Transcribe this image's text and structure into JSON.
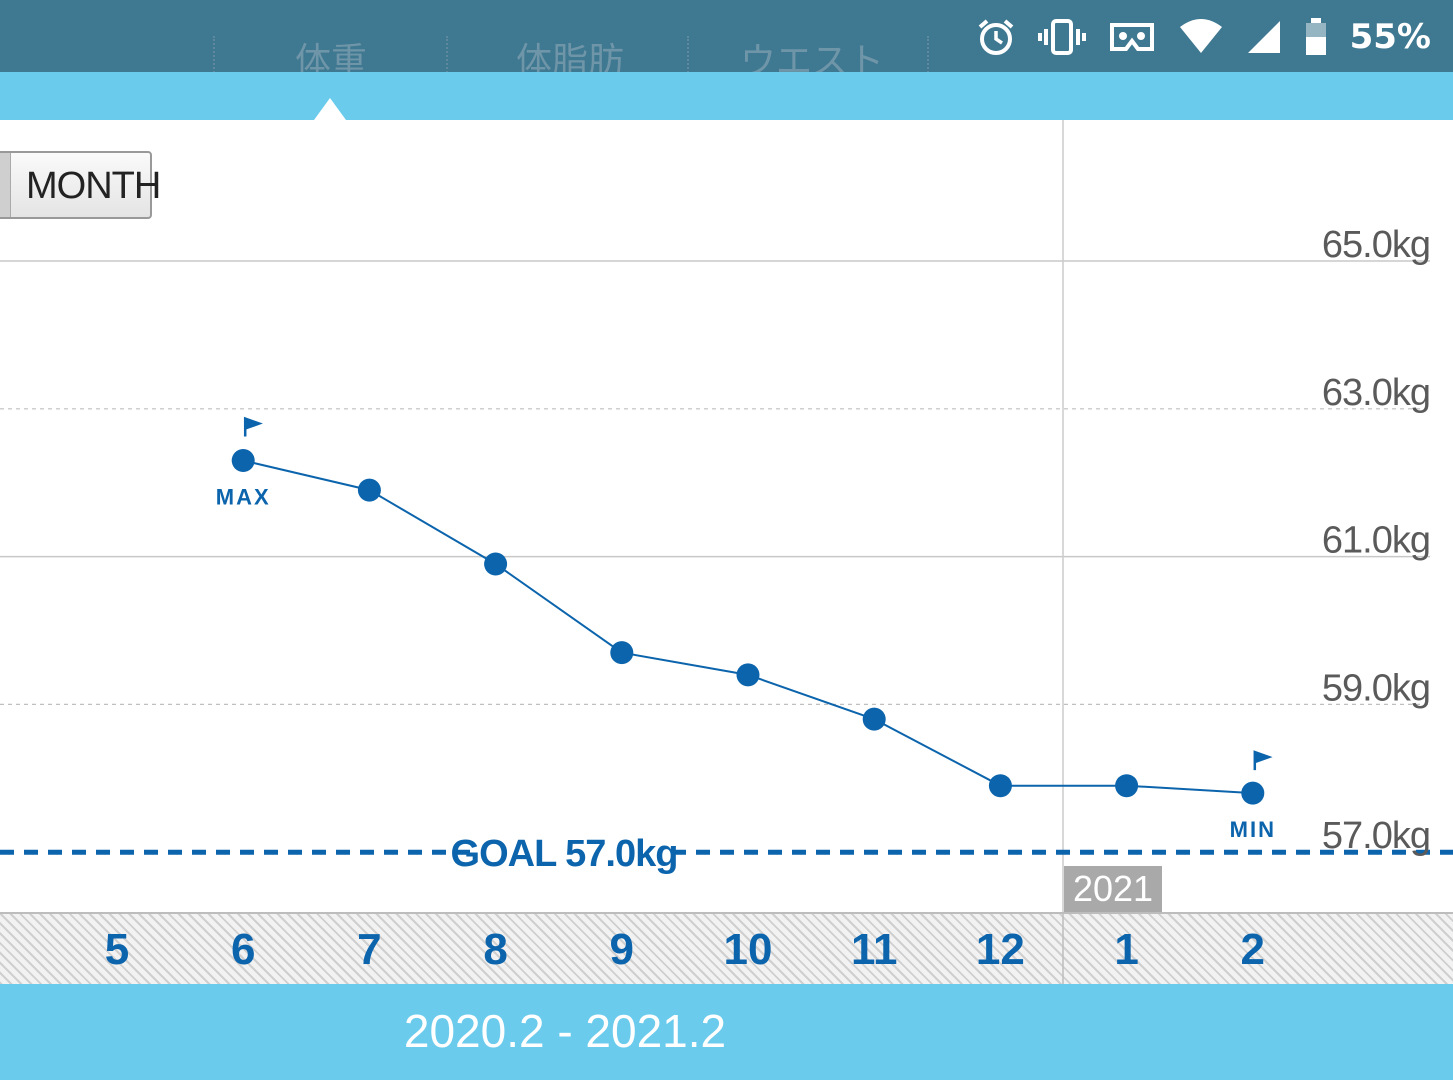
{
  "status_bar": {
    "battery_percent": "55%",
    "icons": [
      "alarm-icon",
      "vibrate-icon",
      "vr-icon",
      "wifi-icon",
      "signal-icon",
      "battery-icon"
    ]
  },
  "tabs": [
    {
      "label": "体重",
      "selected": true
    },
    {
      "label": "体脂肪",
      "selected": false
    },
    {
      "label": "ウエスト",
      "selected": false
    }
  ],
  "period_button": {
    "label": "MONTH"
  },
  "year_badge": "2021",
  "date_range": "2020.2 - 2021.2",
  "colors": {
    "accent": "#6bcbec",
    "header": "#3f7891",
    "series": "#0b64ac"
  },
  "chart_data": {
    "type": "line",
    "categories": [
      "5",
      "6",
      "7",
      "8",
      "9",
      "10",
      "11",
      "12",
      "1",
      "2"
    ],
    "series": [
      {
        "values": [
          null,
          62.3,
          61.9,
          60.9,
          59.7,
          59.4,
          58.8,
          57.9,
          57.9,
          57.8
        ]
      }
    ],
    "y_ticks": [
      "65.0kg",
      "63.0kg",
      "61.0kg",
      "59.0kg",
      "57.0kg"
    ],
    "y_tick_values": [
      65,
      63,
      61,
      59,
      57
    ],
    "ylim": [
      56.2,
      66.6
    ],
    "goal": {
      "value": 57.0,
      "label": "GOAL 57.0kg"
    },
    "annotations": [
      {
        "text": "MAX",
        "category": "6",
        "value": 62.3
      },
      {
        "text": "MIN",
        "category": "2",
        "value": 57.8
      }
    ],
    "grid": true
  }
}
